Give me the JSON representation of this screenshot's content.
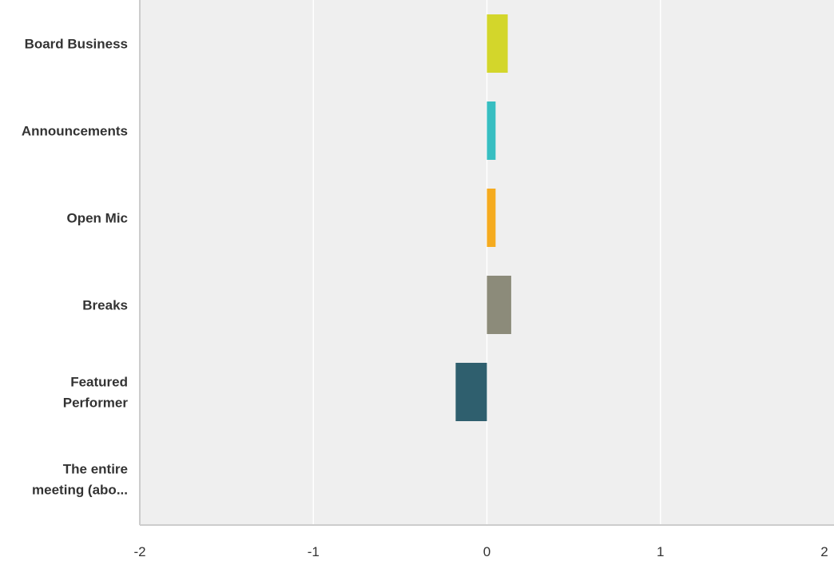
{
  "chart_data": {
    "type": "bar",
    "orientation": "horizontal",
    "categories": [
      [
        "Board Business"
      ],
      [
        "Announcements"
      ],
      [
        "Open Mic"
      ],
      [
        "Breaks"
      ],
      [
        "Featured",
        "Performer"
      ],
      [
        "The entire",
        "meeting (abo..."
      ]
    ],
    "values": [
      0.12,
      0.05,
      0.05,
      0.14,
      -0.18,
      null
    ],
    "colors": [
      "#d3d62b",
      "#37bec1",
      "#f5ab1f",
      "#8c8b7a",
      "#2f5f6e",
      null
    ],
    "xlim": [
      -2,
      2
    ],
    "xticks": [
      -2,
      -1,
      0,
      1,
      2
    ],
    "xtick_labels": [
      "-2",
      "-1",
      "0",
      "1",
      "2"
    ],
    "grid": true,
    "legend": "none",
    "title": "",
    "xlabel": "",
    "ylabel": "",
    "plot_background": "#efefef",
    "grid_color": "#ffffff",
    "axis_color": "#cccccc"
  }
}
